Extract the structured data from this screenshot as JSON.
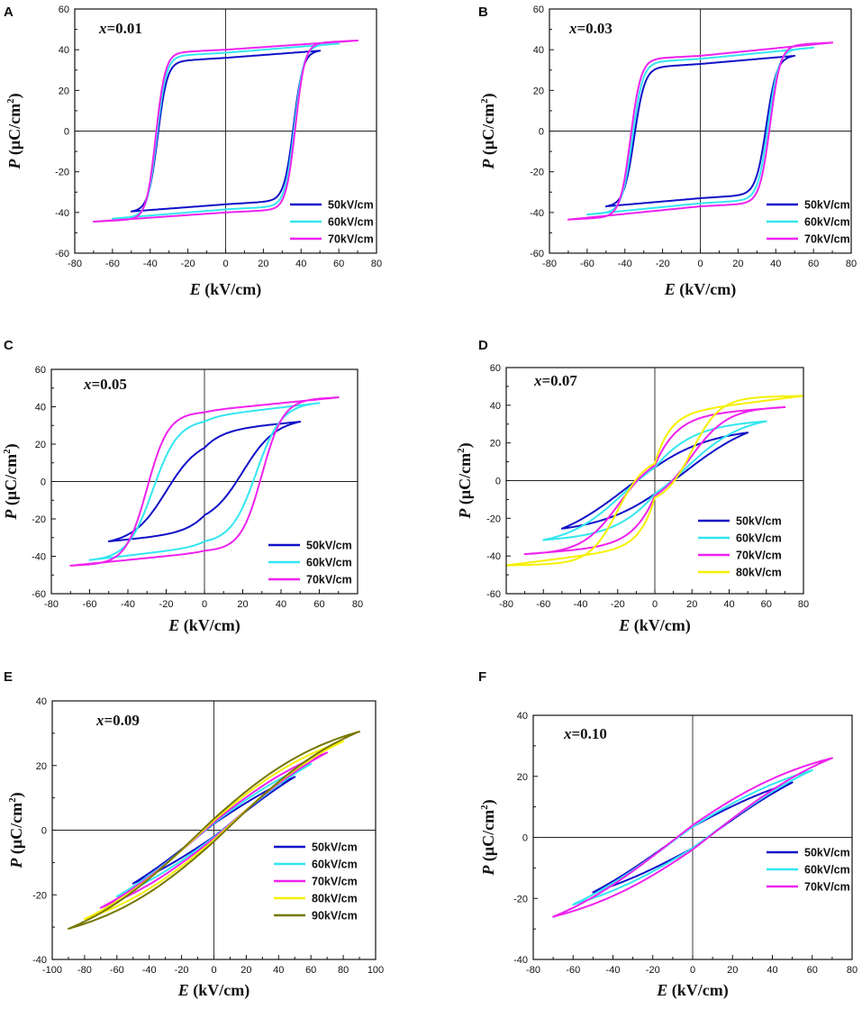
{
  "colors": {
    "50kV/cm": "#1010c8",
    "60kV/cm": "#33e6f0",
    "70kV/cm": "#ee22ee",
    "80kV/cm": "#f5f000",
    "90kV/cm": "#777700",
    "axis": "#111111",
    "zero_line": "#222222"
  },
  "chart_data": [
    {
      "panel": "A",
      "type": "line",
      "title": "x=0.01",
      "title_var": "x",
      "title_value": "=0.01",
      "xlabel": "E (kV/cm)",
      "xlabel_var": "E",
      "xlabel_unit": "(kV/cm)",
      "ylabel": "P (μC/cm2)",
      "ylabel_var": "P",
      "ylabel_unit": "(μC/cm",
      "ylabel_sup": "2",
      "ylabel_close": ")",
      "xlim": [
        -80,
        80
      ],
      "ylim": [
        -60,
        60
      ],
      "xticks": [
        -80,
        -60,
        -40,
        -20,
        0,
        20,
        40,
        60,
        80
      ],
      "yticks": [
        -60,
        -40,
        -20,
        0,
        20,
        40,
        60
      ],
      "legend_position": "lower-right",
      "series": [
        {
          "name": "50kV/cm",
          "Emax": 50,
          "Pmax": 39.5,
          "Pr": 36,
          "Ec": 36,
          "sharp": 5,
          "k": 0.08
        },
        {
          "name": "60kV/cm",
          "Emax": 60,
          "Pmax": 43,
          "Pr": 38.5,
          "Ec": 36.5,
          "sharp": 5,
          "k": 0.08
        },
        {
          "name": "70kV/cm",
          "Emax": 70,
          "Pmax": 44.5,
          "Pr": 40,
          "Ec": 37,
          "sharp": 5,
          "k": 0.08
        }
      ]
    },
    {
      "panel": "B",
      "type": "line",
      "title": "x=0.03",
      "title_var": "x",
      "title_value": "=0.03",
      "xlabel": "E (kV/cm)",
      "xlabel_var": "E",
      "xlabel_unit": "(kV/cm)",
      "ylabel": "P (μC/cm2)",
      "ylabel_var": "P",
      "ylabel_unit": "(μC/cm",
      "ylabel_sup": "2",
      "ylabel_close": ")",
      "xlim": [
        -80,
        80
      ],
      "ylim": [
        -60,
        60
      ],
      "xticks": [
        -80,
        -60,
        -40,
        -20,
        0,
        20,
        40,
        60,
        80
      ],
      "yticks": [
        -60,
        -40,
        -20,
        0,
        20,
        40,
        60
      ],
      "legend_position": "lower-right",
      "series": [
        {
          "name": "50kV/cm",
          "Emax": 50,
          "Pmax": 37,
          "Pr": 33,
          "Ec": 35,
          "sharp": 5.5,
          "k": 0.09
        },
        {
          "name": "60kV/cm",
          "Emax": 60,
          "Pmax": 41,
          "Pr": 35.5,
          "Ec": 36,
          "sharp": 5.5,
          "k": 0.09
        },
        {
          "name": "70kV/cm",
          "Emax": 70,
          "Pmax": 43.5,
          "Pr": 37,
          "Ec": 37,
          "sharp": 5.5,
          "k": 0.09
        }
      ]
    },
    {
      "panel": "C",
      "type": "line",
      "title": "x=0.05",
      "title_var": "x",
      "title_value": "=0.05",
      "xlabel": "E (kV/cm)",
      "xlabel_var": "E",
      "xlabel_unit": "(kV/cm)",
      "ylabel": "P (μC/cm2)",
      "ylabel_var": "P",
      "ylabel_unit": "(μC/cm",
      "ylabel_sup": "2",
      "ylabel_close": ")",
      "xlim": [
        -80,
        80
      ],
      "ylim": [
        -60,
        60
      ],
      "xticks": [
        -80,
        -60,
        -40,
        -20,
        0,
        20,
        40,
        60,
        80
      ],
      "yticks": [
        -60,
        -40,
        -20,
        0,
        20,
        40,
        60
      ],
      "legend_position": "lower-right",
      "series": [
        {
          "name": "50kV/cm",
          "Emax": 50,
          "Pmax": 32,
          "Pr": 18,
          "Ec": 20,
          "sharp": 17,
          "k": 0.09
        },
        {
          "name": "60kV/cm",
          "Emax": 60,
          "Pmax": 42,
          "Pr": 32,
          "Ec": 27,
          "sharp": 13,
          "k": 0.08
        },
        {
          "name": "70kV/cm",
          "Emax": 70,
          "Pmax": 45,
          "Pr": 37,
          "Ec": 30,
          "sharp": 11,
          "k": 0.07
        }
      ]
    },
    {
      "panel": "D",
      "type": "line",
      "title": "x=0.07",
      "title_var": "x",
      "title_value": "=0.07",
      "xlabel": "E (kV/cm)",
      "xlabel_var": "E",
      "xlabel_unit": "(kV/cm)",
      "ylabel": "P (μC/cm2)",
      "ylabel_var": "P",
      "ylabel_unit": "(μC/cm",
      "ylabel_sup": "2",
      "ylabel_close": ")",
      "xlim": [
        -80,
        80
      ],
      "ylim": [
        -60,
        60
      ],
      "xticks": [
        -80,
        -60,
        -40,
        -20,
        0,
        20,
        40,
        60,
        80
      ],
      "yticks": [
        -60,
        -40,
        -20,
        0,
        20,
        40,
        60
      ],
      "legend_position": "lower-right",
      "series": [
        {
          "name": "50kV/cm",
          "Emax": 50,
          "Pmax": 25.5,
          "Pr": 7,
          "Ec": 16,
          "sharp": 40,
          "k": 0.05
        },
        {
          "name": "60kV/cm",
          "Emax": 60,
          "Pmax": 31.5,
          "Pr": 7,
          "Ec": 17,
          "sharp": 30,
          "k": 0.05
        },
        {
          "name": "70kV/cm",
          "Emax": 70,
          "Pmax": 39,
          "Pr": 8,
          "Ec": 19,
          "sharp": 20,
          "k": 0.05
        },
        {
          "name": "80kV/cm",
          "Emax": 80,
          "Pmax": 45,
          "Pr": 9,
          "Ec": 20,
          "sharp": 15,
          "k": 0.05
        }
      ]
    },
    {
      "panel": "E",
      "type": "line",
      "title": "x=0.09",
      "title_var": "x",
      "title_value": "=0.09",
      "xlabel": "E (kV/cm)",
      "xlabel_var": "E",
      "xlabel_unit": "(kV/cm)",
      "ylabel": "P (μC/cm2)",
      "ylabel_var": "P",
      "ylabel_unit": "(μC/cm",
      "ylabel_sup": "2",
      "ylabel_close": ")",
      "xlim": [
        -100,
        100
      ],
      "ylim": [
        -40,
        40
      ],
      "xticks": [
        -100,
        -80,
        -60,
        -40,
        -20,
        0,
        20,
        40,
        60,
        80,
        100
      ],
      "yticks": [
        -40,
        -20,
        0,
        20,
        40
      ],
      "legend_position": "lower-right",
      "series": [
        {
          "name": "50kV/cm",
          "Emax": 50,
          "Pmax": 16.5,
          "Pr": 2,
          "Ec": 6,
          "sharp": 80,
          "k": 0.04
        },
        {
          "name": "60kV/cm",
          "Emax": 60,
          "Pmax": 20.5,
          "Pr": 2.2,
          "Ec": 6.5,
          "sharp": 80,
          "k": 0.04
        },
        {
          "name": "70kV/cm",
          "Emax": 70,
          "Pmax": 24,
          "Pr": 2.5,
          "Ec": 7,
          "sharp": 80,
          "k": 0.04
        },
        {
          "name": "80kV/cm",
          "Emax": 80,
          "Pmax": 27.5,
          "Pr": 3,
          "Ec": 8,
          "sharp": 80,
          "k": 0.04
        },
        {
          "name": "90kV/cm",
          "Emax": 90,
          "Pmax": 30.5,
          "Pr": 3.5,
          "Ec": 9,
          "sharp": 80,
          "k": 0.04
        }
      ]
    },
    {
      "panel": "F",
      "type": "line",
      "title": "x=0.10",
      "title_var": "x",
      "title_value": "=0.10",
      "xlabel": "E (kV/cm)",
      "xlabel_var": "E",
      "xlabel_unit": "(kV/cm)",
      "ylabel": "P (μC/cm2)",
      "ylabel_var": "P",
      "ylabel_unit": "(μC/cm",
      "ylabel_sup": "2",
      "ylabel_close": ")",
      "xlim": [
        -80,
        80
      ],
      "ylim": [
        -40,
        40
      ],
      "xticks": [
        -80,
        -60,
        -40,
        -20,
        0,
        20,
        40,
        60,
        80
      ],
      "yticks": [
        -40,
        -20,
        0,
        20,
        40
      ],
      "legend_position": "lower-right",
      "series": [
        {
          "name": "50kV/cm",
          "Emax": 50,
          "Pmax": 18,
          "Pr": 3.5,
          "Ec": 8,
          "sharp": 70,
          "k": 0.04
        },
        {
          "name": "60kV/cm",
          "Emax": 60,
          "Pmax": 22,
          "Pr": 3.5,
          "Ec": 8,
          "sharp": 70,
          "k": 0.04
        },
        {
          "name": "70kV/cm",
          "Emax": 70,
          "Pmax": 26,
          "Pr": 4,
          "Ec": 9,
          "sharp": 70,
          "k": 0.04
        }
      ]
    }
  ]
}
